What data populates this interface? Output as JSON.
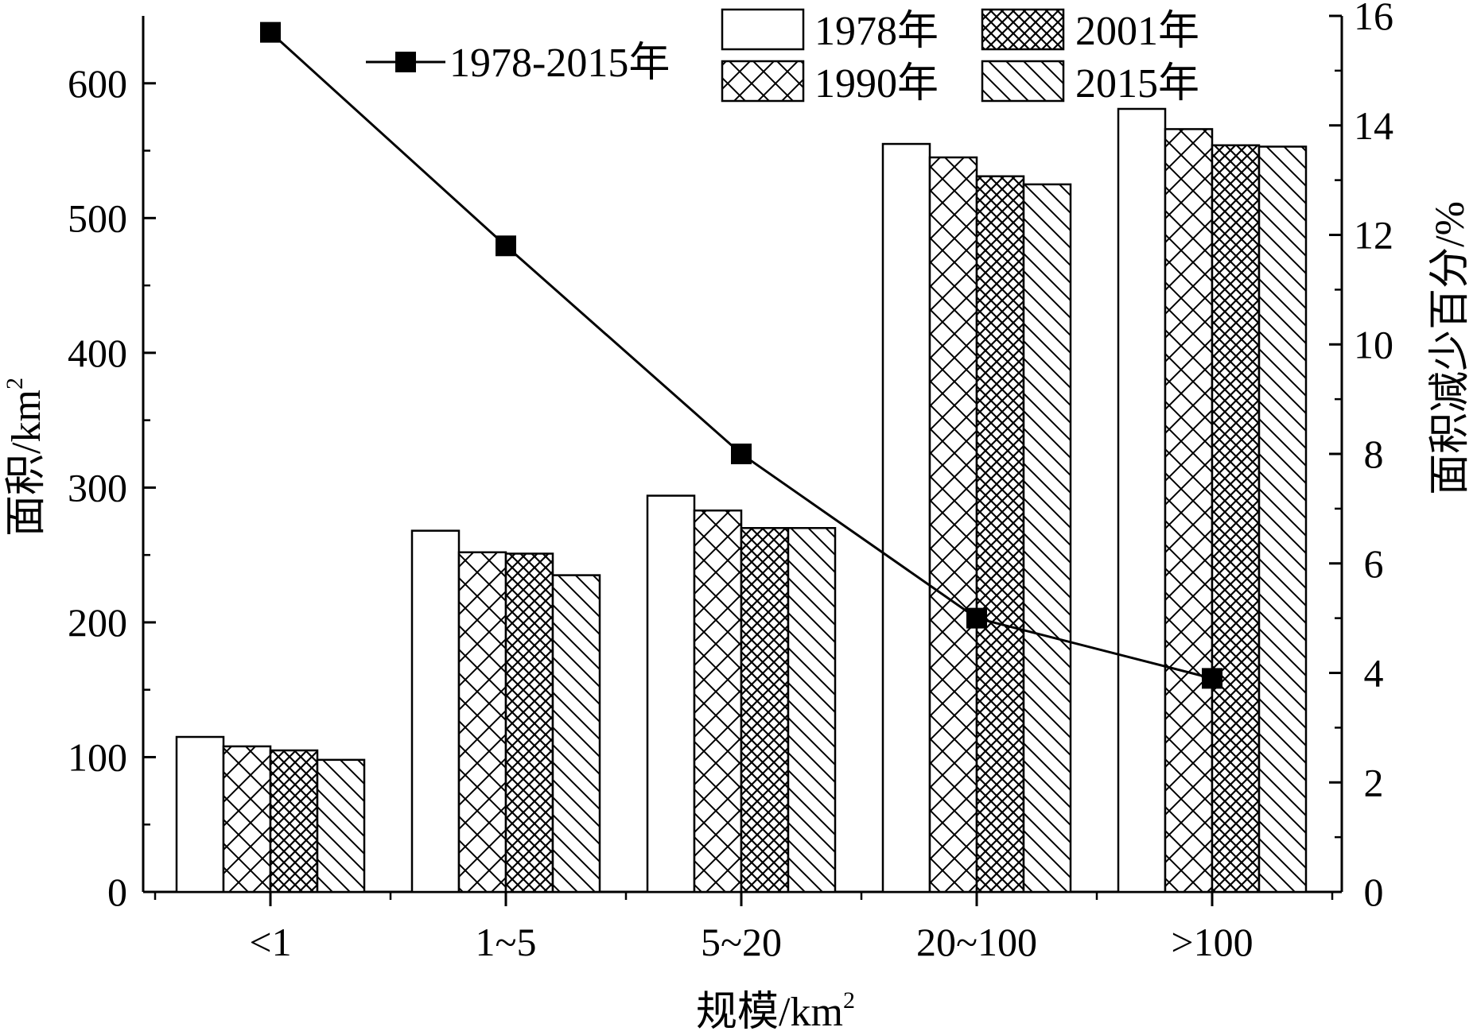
{
  "chart_data": {
    "type": "bar",
    "categories": [
      "<1",
      "1~5",
      "5~20",
      "20~100",
      ">100"
    ],
    "xlabel_base": "规模/km",
    "xlabel_sup": "2",
    "ylabel_base": "面积/km",
    "ylabel_sup": "2",
    "y2label": "面积减少百分/%",
    "ylim": [
      0,
      650
    ],
    "y2lim": [
      0,
      16
    ],
    "yticks": [
      0,
      100,
      200,
      300,
      400,
      500,
      600
    ],
    "y2ticks": [
      0,
      2,
      4,
      6,
      8,
      10,
      12,
      14,
      16
    ],
    "series": [
      {
        "name": "1978年",
        "pattern": "blank",
        "values": [
          115,
          268,
          294,
          555,
          581
        ]
      },
      {
        "name": "1990年",
        "pattern": "crosshatch",
        "values": [
          108,
          252,
          283,
          545,
          566
        ]
      },
      {
        "name": "2001年",
        "pattern": "dense-crosshatch",
        "values": [
          105,
          251,
          270,
          531,
          554
        ]
      },
      {
        "name": "2015年",
        "pattern": "diagonal",
        "values": [
          98,
          235,
          270,
          525,
          553
        ]
      }
    ],
    "line_series": {
      "name": "1978-2015年",
      "axis": "right",
      "values": [
        15.7,
        11.8,
        8.0,
        5.0,
        3.9
      ]
    },
    "legend_placement": "top"
  }
}
